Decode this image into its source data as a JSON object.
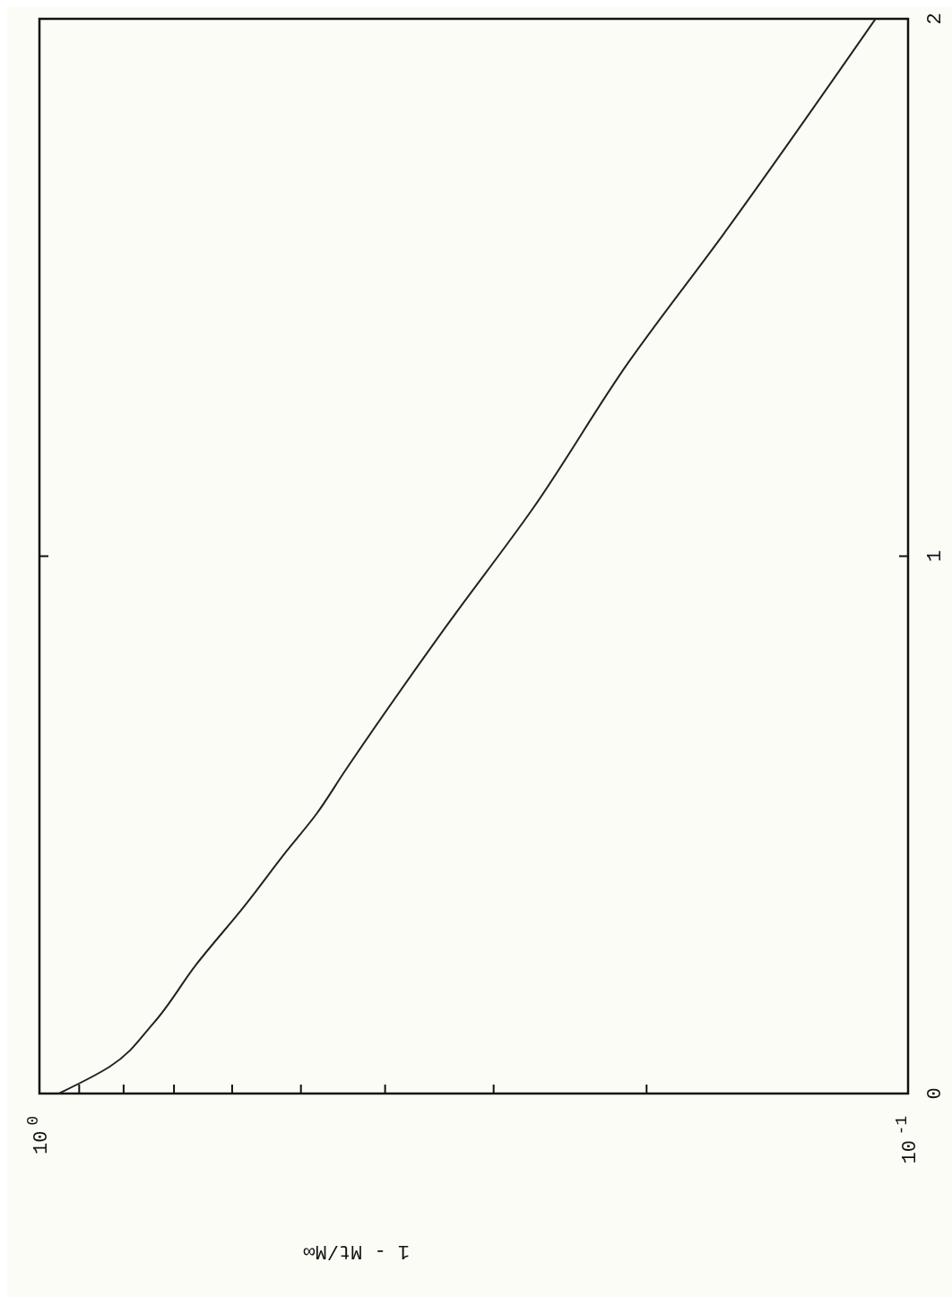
{
  "chart_data": {
    "type": "line",
    "xlabel": "1 - Mt/M∞",
    "log": "x",
    "ylim": [
      0,
      2
    ],
    "yticks": [
      0,
      1,
      2
    ],
    "xlim": [
      1,
      0.1
    ],
    "xticks": [
      {
        "value": 1,
        "label": "10$^{0}$"
      },
      {
        "value": 0.9,
        "label": null
      },
      {
        "value": 0.8,
        "label": null
      },
      {
        "value": 0.7,
        "label": null
      },
      {
        "value": 0.6,
        "label": null
      },
      {
        "value": 0.5,
        "label": null
      },
      {
        "value": 0.4,
        "label": null
      },
      {
        "value": 0.3,
        "label": null
      },
      {
        "value": 0.2,
        "label": null
      },
      {
        "value": 0.1,
        "label": "10$^{-1}$"
      }
    ],
    "x": [
      0.95,
      0.83,
      0.74,
      0.66,
      0.58,
      0.52,
      0.48,
      0.445,
      0.34,
      0.27,
      0.21,
      0.163,
      0.109
    ],
    "series": [
      {
        "color": "#222222",
        "values": [
          0,
          0.05,
          0.13,
          0.24,
          0.35,
          0.45,
          0.52,
          0.6,
          0.87,
          1.09,
          1.36,
          1.6,
          2.0
        ]
      }
    ]
  }
}
